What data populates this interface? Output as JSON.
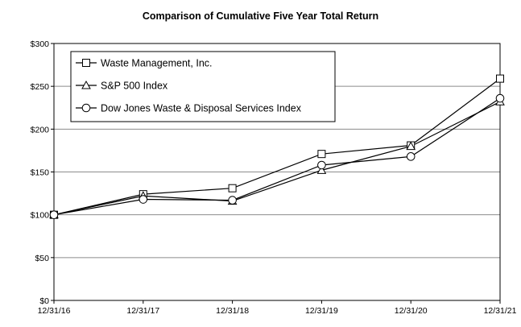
{
  "chart_data": {
    "type": "line",
    "title": "Comparison of Cumulative Five Year Total Return",
    "xlabel": "",
    "ylabel": "",
    "x": [
      "12/31/16",
      "12/31/17",
      "12/31/18",
      "12/31/19",
      "12/31/20",
      "12/31/21"
    ],
    "yticks": [
      "$0",
      "$50",
      "$100",
      "$150",
      "$200",
      "$250",
      "$300"
    ],
    "ylim": [
      0,
      300
    ],
    "grid": true,
    "legend_position": "top-left",
    "series": [
      {
        "name": "Waste Management, Inc.",
        "marker": "square",
        "values": [
          100,
          124,
          131,
          171,
          181,
          259
        ]
      },
      {
        "name": "S&P 500 Index",
        "marker": "triangle",
        "values": [
          100,
          122,
          116,
          152,
          180,
          232
        ]
      },
      {
        "name": "Dow Jones Waste & Disposal Services Index",
        "marker": "circle",
        "values": [
          100,
          118,
          117,
          158,
          168,
          236
        ]
      }
    ]
  }
}
